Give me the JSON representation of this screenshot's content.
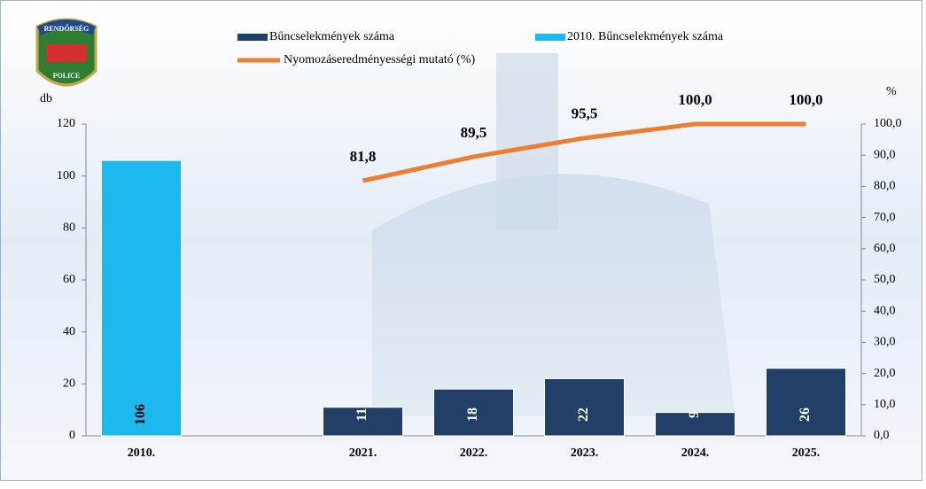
{
  "logo": {
    "top": "RENDŐRSÉG",
    "bottom": "POLICE"
  },
  "chart_data": {
    "type": "bar-line",
    "categories": [
      "2010.",
      null,
      "2021.",
      "2022.",
      "2023.",
      "2024.",
      "2025."
    ],
    "y_label": "db",
    "y2_label": "%",
    "ylim": [
      0,
      120
    ],
    "yticks": [
      0,
      20,
      40,
      60,
      80,
      100,
      120
    ],
    "y2lim": [
      0,
      100
    ],
    "y2ticks": [
      {
        "value": 0,
        "label": "0,0"
      },
      {
        "value": 10,
        "label": "10,0"
      },
      {
        "value": 20,
        "label": "20,0"
      },
      {
        "value": 30,
        "label": "30,0"
      },
      {
        "value": 40,
        "label": "40,0"
      },
      {
        "value": 50,
        "label": "50,0"
      },
      {
        "value": 60,
        "label": "60,0"
      },
      {
        "value": 70,
        "label": "70,0"
      },
      {
        "value": 80,
        "label": "80,0"
      },
      {
        "value": 90,
        "label": "90,0"
      },
      {
        "value": 100,
        "label": "100,0"
      }
    ],
    "series": [
      {
        "name": "Bűncselekmények száma",
        "type": "bar",
        "color": "#213f67",
        "values": [
          null,
          null,
          11,
          18,
          22,
          9,
          26
        ]
      },
      {
        "name": "2010. Bűncselekmények száma",
        "type": "bar",
        "color": "#1db8ee",
        "values": [
          106,
          null,
          null,
          null,
          null,
          null,
          null
        ]
      },
      {
        "name": "Nyomozáseredményességi mutató (%)",
        "type": "line",
        "axis": "y2",
        "color": "#ed7d31",
        "values": [
          null,
          null,
          81.8,
          89.5,
          95.5,
          100,
          100
        ],
        "value_labels": [
          null,
          null,
          "81,8",
          "89,5",
          "95,5",
          "100,0",
          "100,0"
        ]
      }
    ]
  }
}
